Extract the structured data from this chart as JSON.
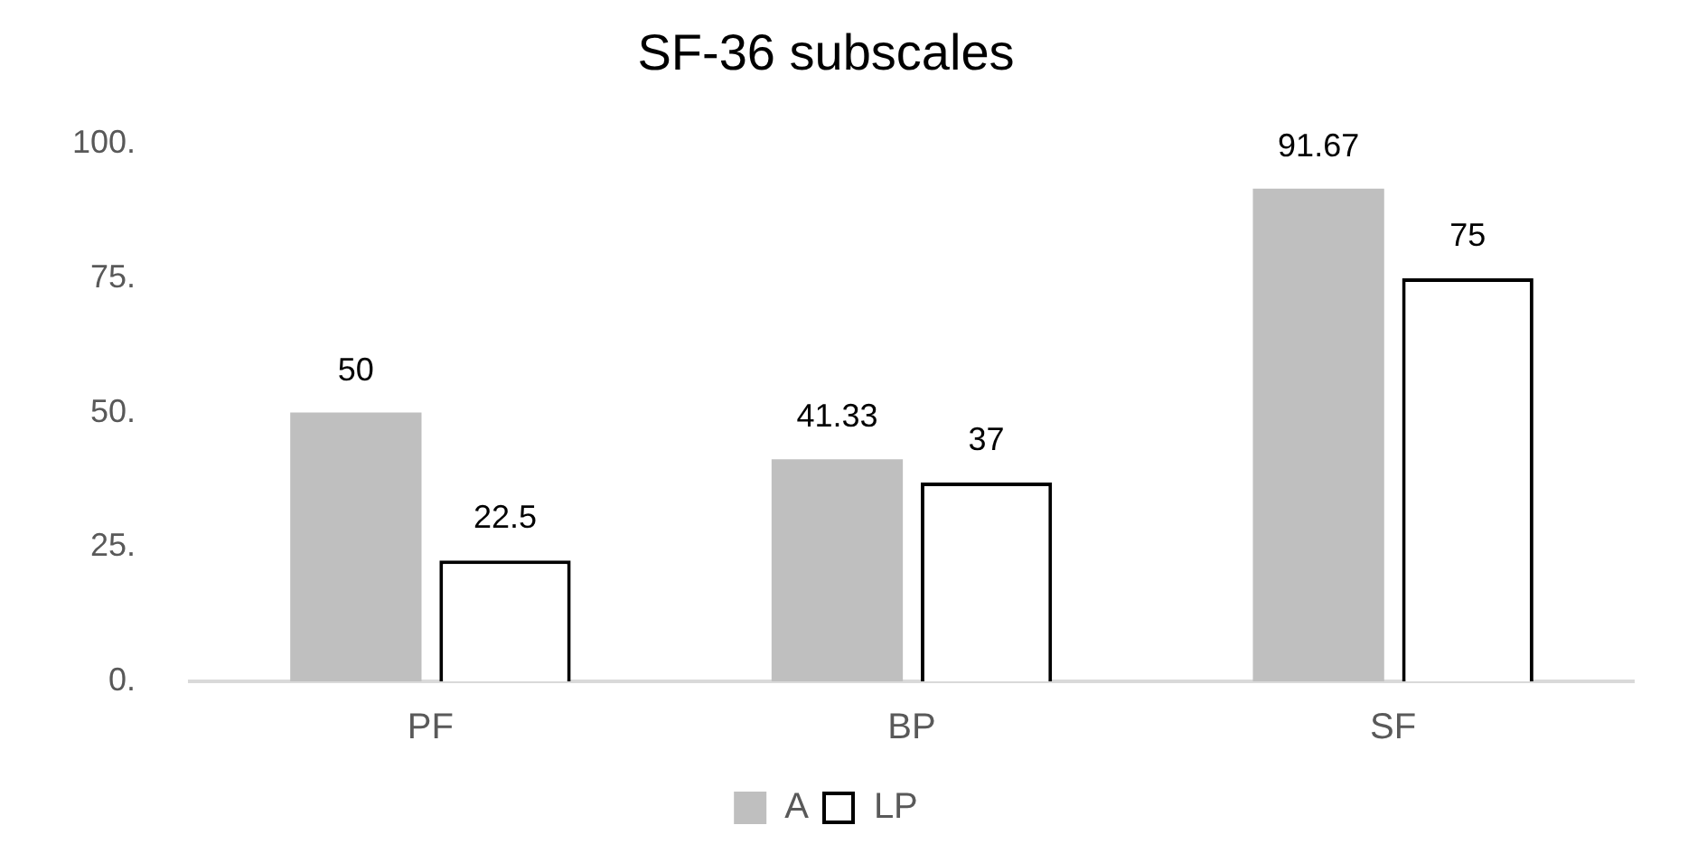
{
  "chart_data": {
    "type": "bar",
    "title": "SF-36 subscales",
    "categories": [
      "PF",
      "BP",
      "SF"
    ],
    "series": [
      {
        "name": "A",
        "color": "#bfbfbf",
        "values": [
          50,
          41.33,
          91.67
        ]
      },
      {
        "name": "LP",
        "color": "#ffffff",
        "values": [
          22.5,
          37,
          75
        ]
      }
    ],
    "ylim": [
      0,
      100
    ],
    "yticks": [
      {
        "value": 0,
        "label": "0."
      },
      {
        "value": 25,
        "label": "25."
      },
      {
        "value": 50,
        "label": "50."
      },
      {
        "value": 75,
        "label": "75."
      },
      {
        "value": 100,
        "label": "100."
      }
    ],
    "grid": false,
    "legend": "bottom",
    "data_labels": true
  }
}
